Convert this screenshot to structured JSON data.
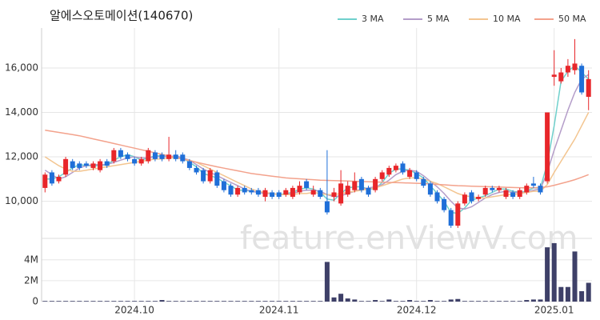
{
  "chart_data": {
    "type": "candlestick",
    "title": "알에스오토메이션(140670)",
    "watermark": "feature.enViewV.com",
    "categories": [
      null,
      null,
      null,
      null,
      null,
      null,
      null,
      null,
      null,
      null,
      null,
      null,
      null,
      "2024.10",
      null,
      null,
      null,
      null,
      null,
      null,
      null,
      null,
      null,
      null,
      null,
      null,
      null,
      null,
      null,
      null,
      null,
      null,
      null,
      null,
      "2024.11",
      null,
      null,
      null,
      null,
      null,
      null,
      null,
      null,
      null,
      null,
      null,
      null,
      null,
      null,
      null,
      null,
      null,
      null,
      null,
      "2024.12",
      null,
      null,
      null,
      null,
      null,
      null,
      null,
      null,
      null,
      null,
      null,
      null,
      null,
      null,
      null,
      null,
      null,
      null,
      null,
      "2025.01",
      null,
      null,
      null,
      null,
      null
    ],
    "open": [
      10600,
      11300,
      10900,
      11200,
      11800,
      11700,
      11700,
      11500,
      11400,
      11800,
      11800,
      12300,
      12100,
      11900,
      11700,
      11800,
      12200,
      12100,
      11900,
      12100,
      12100,
      11800,
      11500,
      11400,
      10900,
      11300,
      10900,
      10700,
      10300,
      10600,
      10500,
      10500,
      10200,
      10400,
      10400,
      10300,
      10200,
      10400,
      10900,
      10300,
      10500,
      10000,
      10200,
      9900,
      10300,
      10500,
      11000,
      10600,
      10500,
      11000,
      11200,
      11400,
      11700,
      11100,
      11300,
      11000,
      10800,
      10400,
      10100,
      9600,
      8900,
      9900,
      10400,
      10100,
      10300,
      10600,
      10500,
      10200,
      10400,
      10200,
      10400,
      10800,
      10700,
      10900,
      15600,
      15400,
      15800,
      15900,
      16100,
      14700
    ],
    "high": [
      11300,
      11400,
      11200,
      12000,
      11900,
      11800,
      11800,
      11800,
      11900,
      11900,
      12400,
      12400,
      12200,
      12000,
      12000,
      12400,
      12300,
      12200,
      12900,
      12300,
      12200,
      11900,
      11600,
      11500,
      11500,
      11400,
      11000,
      10800,
      10700,
      10700,
      10600,
      10600,
      10600,
      10500,
      10500,
      10600,
      10700,
      10900,
      11000,
      10700,
      10600,
      12300,
      10600,
      11400,
      10900,
      11300,
      11100,
      10700,
      11100,
      11400,
      11600,
      11700,
      11800,
      11500,
      11400,
      11100,
      10900,
      10500,
      10200,
      9700,
      10000,
      10400,
      10500,
      10300,
      10700,
      10700,
      10700,
      10600,
      10500,
      10600,
      10800,
      11100,
      10800,
      14000,
      16800,
      16000,
      16400,
      17300,
      16200,
      15900
    ],
    "low": [
      10400,
      10700,
      10800,
      11100,
      11400,
      11400,
      11500,
      11400,
      11300,
      11500,
      11700,
      11900,
      11800,
      11600,
      11600,
      11700,
      11800,
      11800,
      11800,
      11800,
      11700,
      11400,
      11200,
      10800,
      10800,
      10600,
      10400,
      10200,
      10200,
      10300,
      10300,
      10200,
      10000,
      10100,
      10100,
      10200,
      10100,
      10300,
      10500,
      10200,
      10100,
      9400,
      10000,
      9800,
      10200,
      10400,
      10400,
      10200,
      10400,
      10900,
      11100,
      11300,
      11200,
      11000,
      10900,
      10600,
      10200,
      9900,
      9500,
      8800,
      8800,
      9800,
      9900,
      10000,
      10200,
      10400,
      10400,
      10100,
      10100,
      10100,
      10300,
      10600,
      10300,
      10800,
      15200,
      15300,
      15600,
      15700,
      14800,
      14100
    ],
    "close": [
      11200,
      10800,
      11100,
      11900,
      11500,
      11500,
      11600,
      11700,
      11800,
      11600,
      12300,
      12000,
      11900,
      11700,
      11900,
      12300,
      11900,
      11900,
      12100,
      11900,
      11800,
      11500,
      11300,
      10900,
      11400,
      10700,
      10500,
      10300,
      10600,
      10400,
      10400,
      10300,
      10500,
      10200,
      10200,
      10500,
      10600,
      10700,
      10600,
      10500,
      10200,
      9500,
      10400,
      10800,
      10700,
      10900,
      10500,
      10300,
      11000,
      11300,
      11500,
      11600,
      11300,
      11400,
      11000,
      10700,
      10300,
      10000,
      9600,
      8900,
      9900,
      10300,
      10000,
      10200,
      10600,
      10500,
      10600,
      10500,
      10200,
      10500,
      10700,
      10700,
      10400,
      14000,
      15700,
      15800,
      16100,
      16200,
      14900,
      15500
    ],
    "up_color": "#e8262a",
    "down_color": "#1f6fd8",
    "ylim": [
      8400,
      17800
    ],
    "yticks": [
      {
        "value": 10000,
        "label": "10,000"
      },
      {
        "value": 12000,
        "label": "12,000"
      },
      {
        "value": 14000,
        "label": "14,000"
      },
      {
        "value": 16000,
        "label": "16,000"
      }
    ],
    "grid": true,
    "legend": "top-right",
    "ma_series": [
      {
        "name": "3 MA",
        "color": "#6fd0cc",
        "values": [
          11000,
          11000,
          11100,
          11300,
          11500,
          11650,
          11600,
          11600,
          11600,
          11650,
          11850,
          12000,
          12100,
          12000,
          11850,
          11950,
          12050,
          12050,
          12000,
          12000,
          11950,
          11750,
          11550,
          11250,
          11150,
          11050,
          10850,
          10700,
          10500,
          10500,
          10450,
          10400,
          10350,
          10350,
          10300,
          10350,
          10400,
          10550,
          10600,
          10550,
          10400,
          10100,
          10050,
          10350,
          10600,
          10650,
          10650,
          10550,
          10550,
          10850,
          11250,
          11450,
          11450,
          11400,
          11250,
          11050,
          10700,
          10350,
          10000,
          9500,
          9450,
          9700,
          10050,
          10150,
          10250,
          10400,
          10550,
          10550,
          10450,
          10400,
          10450,
          10600,
          10600,
          11700,
          13400,
          15400,
          15850,
          16100,
          15800,
          15500
        ]
      },
      {
        "name": "5 MA",
        "color": "#b49dc9",
        "values": [
          11400,
          11200,
          11000,
          11100,
          11300,
          11500,
          11600,
          11650,
          11650,
          11650,
          11750,
          11850,
          11950,
          12000,
          11950,
          11950,
          12000,
          12000,
          12000,
          12050,
          11950,
          11850,
          11650,
          11450,
          11300,
          11150,
          11000,
          10850,
          10700,
          10550,
          10450,
          10400,
          10350,
          10350,
          10300,
          10300,
          10350,
          10450,
          10500,
          10500,
          10450,
          10300,
          10200,
          10250,
          10350,
          10450,
          10550,
          10600,
          10650,
          10750,
          10950,
          11200,
          11350,
          11400,
          11350,
          11150,
          10900,
          10650,
          10350,
          10000,
          9700,
          9650,
          9750,
          9950,
          10150,
          10300,
          10400,
          10450,
          10400,
          10400,
          10400,
          10500,
          10550,
          11300,
          12300,
          13200,
          14100,
          14900,
          15500,
          15700
        ]
      },
      {
        "name": "10 MA",
        "color": "#f3c590",
        "values": [
          12000,
          11800,
          11600,
          11450,
          11350,
          11350,
          11400,
          11450,
          11500,
          11550,
          11600,
          11650,
          11700,
          11750,
          11800,
          11850,
          11900,
          11900,
          11950,
          11950,
          11900,
          11850,
          11750,
          11600,
          11450,
          11300,
          11150,
          11000,
          10850,
          10700,
          10550,
          10450,
          10400,
          10350,
          10300,
          10300,
          10300,
          10350,
          10350,
          10400,
          10350,
          10300,
          10300,
          10350,
          10400,
          10450,
          10500,
          10550,
          10600,
          10700,
          10800,
          10900,
          11000,
          11050,
          11050,
          11000,
          10900,
          10800,
          10650,
          10500,
          10350,
          10250,
          10200,
          10150,
          10150,
          10200,
          10250,
          10300,
          10300,
          10350,
          10400,
          10450,
          10450,
          10750,
          11300,
          11800,
          12300,
          12800,
          13400,
          14000
        ]
      },
      {
        "name": "50 MA",
        "color": "#f3a28c",
        "values": [
          13200,
          13150,
          13100,
          13050,
          13000,
          12950,
          12880,
          12810,
          12740,
          12670,
          12600,
          12530,
          12460,
          12390,
          12320,
          12250,
          12180,
          12110,
          12040,
          11970,
          11900,
          11830,
          11760,
          11690,
          11620,
          11550,
          11490,
          11430,
          11370,
          11310,
          11250,
          11210,
          11170,
          11130,
          11090,
          11050,
          11030,
          11010,
          10990,
          10970,
          10950,
          10940,
          10930,
          10920,
          10910,
          10900,
          10890,
          10880,
          10870,
          10860,
          10850,
          10840,
          10830,
          10820,
          10810,
          10800,
          10780,
          10760,
          10740,
          10720,
          10700,
          10690,
          10680,
          10670,
          10660,
          10650,
          10640,
          10630,
          10620,
          10610,
          10600,
          10610,
          10620,
          10650,
          10720,
          10800,
          10880,
          10970,
          11080,
          11200
        ]
      }
    ],
    "volume": {
      "color": "#3e4068",
      "values": [
        60000,
        60000,
        60000,
        60000,
        60000,
        60000,
        60000,
        60000,
        60000,
        60000,
        60000,
        60000,
        60000,
        60000,
        60000,
        60000,
        60000,
        150000,
        60000,
        60000,
        60000,
        60000,
        60000,
        60000,
        60000,
        60000,
        60000,
        60000,
        60000,
        60000,
        60000,
        60000,
        60000,
        60000,
        60000,
        60000,
        60000,
        60000,
        60000,
        60000,
        60000,
        3800000,
        400000,
        750000,
        300000,
        200000,
        60000,
        60000,
        150000,
        60000,
        200000,
        60000,
        60000,
        150000,
        60000,
        60000,
        150000,
        60000,
        60000,
        200000,
        250000,
        60000,
        60000,
        60000,
        60000,
        60000,
        60000,
        60000,
        60000,
        60000,
        150000,
        200000,
        200000,
        5200000,
        5600000,
        1400000,
        1400000,
        4800000,
        1000000,
        1800000
      ],
      "ylim": [
        0,
        5900000
      ],
      "yticks": [
        0,
        {
          "value": 2000000,
          "label": "2M"
        },
        {
          "value": 4000000,
          "label": "4M"
        }
      ]
    }
  }
}
